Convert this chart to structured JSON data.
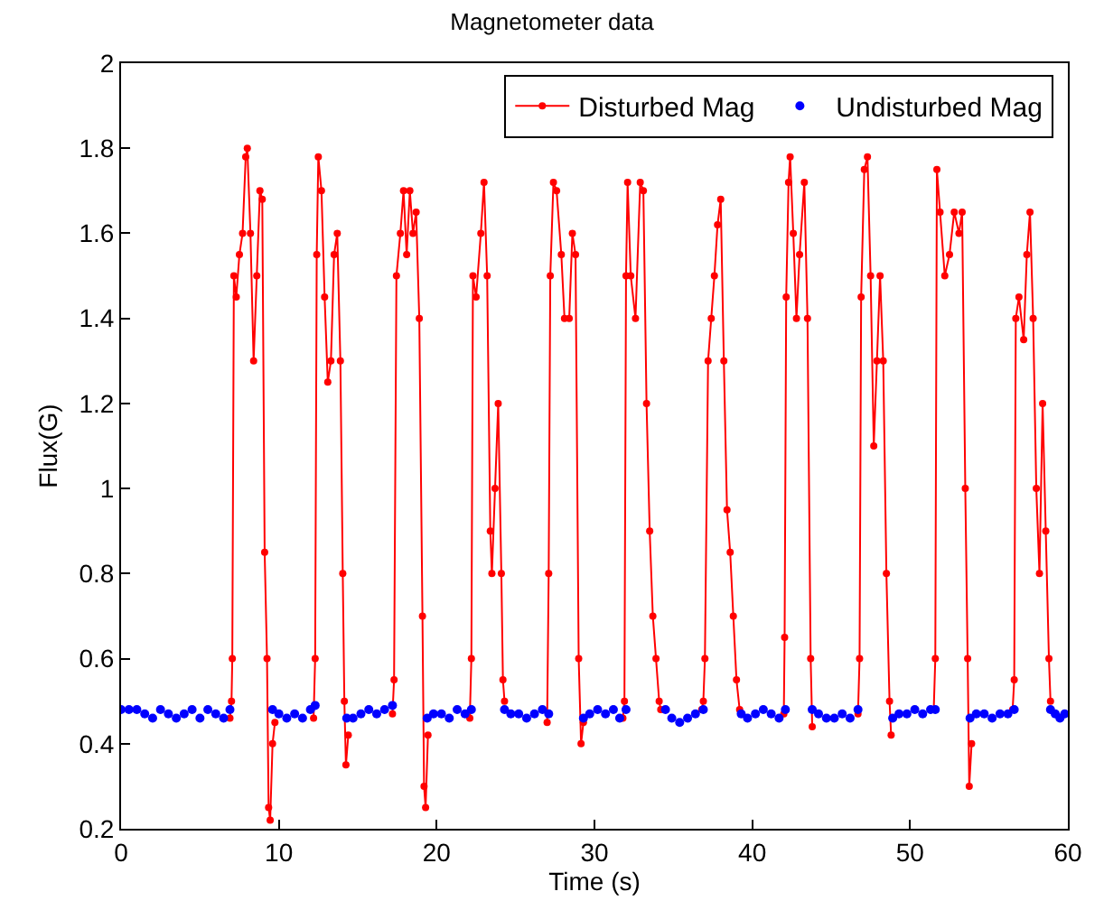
{
  "chart_data": {
    "type": "line",
    "title": "Magnetometer data",
    "xlabel": "Time (s)",
    "ylabel": "Flux(G)",
    "xlim": [
      0,
      60
    ],
    "xticks": [
      0,
      10,
      20,
      30,
      40,
      50,
      60
    ],
    "ylim": [
      0.2,
      2
    ],
    "yticks": [
      0.2,
      0.4,
      0.6,
      0.8,
      1,
      1.2,
      1.4,
      1.6,
      1.8,
      2
    ],
    "grid": false,
    "legend": "top right",
    "marker": "circle",
    "series": [
      {
        "name": "Disturbed Mag",
        "color": "#ff0000",
        "x": [
          6.9,
          7.0,
          7.05,
          7.15,
          7.3,
          7.5,
          7.7,
          7.9,
          8.0,
          8.2,
          8.4,
          8.6,
          8.8,
          8.95,
          9.1,
          9.25,
          9.35,
          9.45,
          9.6,
          9.75,
          10.5,
          12.2,
          12.3,
          12.4,
          12.5,
          12.7,
          12.9,
          13.1,
          13.3,
          13.5,
          13.7,
          13.9,
          14.05,
          14.15,
          14.25,
          14.4,
          15.5,
          17.2,
          17.3,
          17.45,
          17.7,
          17.9,
          18.1,
          18.3,
          18.5,
          18.7,
          18.9,
          19.1,
          19.2,
          19.3,
          19.45,
          20.5,
          22.1,
          22.2,
          22.3,
          22.5,
          22.8,
          23.0,
          23.2,
          23.4,
          23.5,
          23.7,
          23.9,
          24.1,
          24.2,
          24.3,
          25,
          27.0,
          27.1,
          27.2,
          27.4,
          27.6,
          27.9,
          28.1,
          28.4,
          28.6,
          28.8,
          29.0,
          29.15,
          29.3,
          30.5,
          31.8,
          31.9,
          32.0,
          32.1,
          32.3,
          32.6,
          32.9,
          33.1,
          33.3,
          33.5,
          33.7,
          33.9,
          34.1,
          34.2,
          35.5,
          36.8,
          36.9,
          37.0,
          37.2,
          37.4,
          37.6,
          37.8,
          38.0,
          38.2,
          38.4,
          38.6,
          38.8,
          39.0,
          39.2,
          40,
          42.0,
          42.05,
          42.15,
          42.3,
          42.4,
          42.6,
          42.8,
          43.0,
          43.3,
          43.5,
          43.7,
          43.8,
          45,
          46.7,
          46.8,
          46.9,
          47.1,
          47.3,
          47.5,
          47.7,
          47.9,
          48.1,
          48.3,
          48.5,
          48.7,
          48.8,
          50,
          51.5,
          51.6,
          51.7,
          51.9,
          52.2,
          52.5,
          52.8,
          53.1,
          53.3,
          53.5,
          53.65,
          53.75,
          53.9,
          55,
          56.5,
          56.6,
          56.7,
          56.9,
          57.2,
          57.4,
          57.6,
          57.8,
          58.0,
          58.2,
          58.4,
          58.6,
          58.8,
          58.9
        ],
        "values": [
          0.46,
          0.5,
          0.6,
          1.5,
          1.45,
          1.55,
          1.6,
          1.78,
          1.8,
          1.6,
          1.3,
          1.5,
          1.7,
          1.68,
          0.85,
          0.6,
          0.25,
          0.22,
          0.4,
          0.45,
          null,
          0.46,
          0.6,
          1.55,
          1.78,
          1.7,
          1.45,
          1.25,
          1.3,
          1.55,
          1.6,
          1.3,
          0.8,
          0.5,
          0.35,
          0.42,
          null,
          0.47,
          0.55,
          1.5,
          1.6,
          1.7,
          1.55,
          1.7,
          1.6,
          1.65,
          1.4,
          0.7,
          0.3,
          0.25,
          0.42,
          null,
          0.46,
          0.6,
          1.5,
          1.45,
          1.6,
          1.72,
          1.5,
          0.9,
          0.8,
          1.0,
          1.2,
          0.8,
          0.55,
          0.5,
          null,
          0.45,
          0.8,
          1.5,
          1.72,
          1.7,
          1.55,
          1.4,
          1.4,
          1.6,
          1.55,
          0.6,
          0.4,
          0.45,
          null,
          0.46,
          0.5,
          1.5,
          1.72,
          1.5,
          1.4,
          1.72,
          1.7,
          1.2,
          0.9,
          0.7,
          0.6,
          0.5,
          0.48,
          null,
          0.48,
          0.5,
          0.6,
          1.3,
          1.4,
          1.5,
          1.62,
          1.68,
          1.3,
          0.95,
          0.85,
          0.7,
          0.55,
          0.48,
          null,
          0.47,
          0.65,
          1.45,
          1.72,
          1.78,
          1.6,
          1.4,
          1.55,
          1.72,
          1.4,
          0.6,
          0.44,
          null,
          0.47,
          0.6,
          1.45,
          1.75,
          1.78,
          1.5,
          1.1,
          1.3,
          1.5,
          1.3,
          0.8,
          0.5,
          0.42,
          null,
          0.48,
          0.6,
          1.75,
          1.65,
          1.5,
          1.55,
          1.65,
          1.6,
          1.65,
          1.0,
          0.6,
          0.3,
          0.4,
          null,
          0.48,
          0.55,
          1.4,
          1.45,
          1.35,
          1.55,
          1.65,
          1.4,
          1.0,
          0.8,
          1.2,
          0.9,
          0.6,
          0.5
        ]
      },
      {
        "name": "Undisturbed Mag",
        "color": "#0000ff",
        "type": "scatter",
        "x": [
          0,
          0.5,
          1,
          1.5,
          2,
          2.5,
          3,
          3.5,
          4,
          4.5,
          5,
          5.5,
          6,
          6.5,
          6.9,
          8,
          9.6,
          10,
          10.5,
          11,
          11.5,
          12,
          12.3,
          13,
          14.3,
          14.7,
          15.2,
          15.7,
          16.2,
          16.7,
          17.2,
          18,
          19.4,
          19.8,
          20.3,
          20.8,
          21.3,
          21.8,
          22.2,
          23,
          24.3,
          24.7,
          25.2,
          25.7,
          26.2,
          26.7,
          27.1,
          28,
          29.3,
          29.7,
          30.2,
          30.7,
          31.2,
          31.6,
          32,
          33,
          34.5,
          34.9,
          35.4,
          35.9,
          36.4,
          36.9,
          38,
          39.3,
          39.7,
          40.2,
          40.7,
          41.2,
          41.7,
          42.1,
          43,
          43.8,
          44.2,
          44.7,
          45.2,
          45.7,
          46.2,
          46.7,
          48,
          48.9,
          49.3,
          49.8,
          50.3,
          50.8,
          51.3,
          51.6,
          52,
          53.8,
          54.2,
          54.7,
          55.2,
          55.7,
          56.2,
          56.6,
          57,
          58.9,
          59.2,
          59.5,
          59.8
        ],
        "values": [
          0.48,
          0.48,
          0.48,
          0.47,
          0.46,
          0.48,
          0.47,
          0.46,
          0.47,
          0.48,
          0.46,
          0.48,
          0.47,
          0.46,
          0.48,
          null,
          0.48,
          0.47,
          0.46,
          0.47,
          0.46,
          0.48,
          0.49,
          null,
          0.46,
          0.46,
          0.47,
          0.48,
          0.47,
          0.48,
          0.49,
          null,
          0.46,
          0.47,
          0.47,
          0.46,
          0.48,
          0.47,
          0.48,
          null,
          0.48,
          0.47,
          0.47,
          0.46,
          0.47,
          0.48,
          0.47,
          null,
          0.46,
          0.47,
          0.48,
          0.47,
          0.48,
          0.46,
          0.48,
          null,
          0.48,
          0.46,
          0.45,
          0.46,
          0.47,
          0.48,
          null,
          0.47,
          0.46,
          0.47,
          0.48,
          0.47,
          0.46,
          0.48,
          null,
          0.48,
          0.47,
          0.46,
          0.46,
          0.47,
          0.46,
          0.48,
          null,
          0.46,
          0.47,
          0.47,
          0.48,
          0.47,
          0.48,
          0.48,
          null,
          0.46,
          0.47,
          0.47,
          0.46,
          0.47,
          0.47,
          0.48,
          null,
          0.48,
          0.47,
          0.46,
          0.47
        ]
      }
    ]
  }
}
